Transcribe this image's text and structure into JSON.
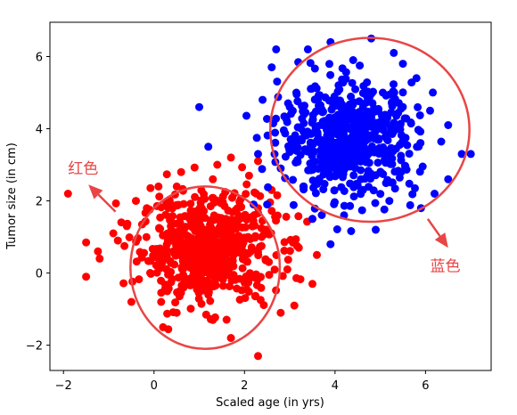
{
  "chart_data": {
    "type": "scatter",
    "xlabel": "Scaled age (in yrs)",
    "ylabel": "Tumor size (in cm)",
    "xlim": [
      -2.3,
      7.45
    ],
    "ylim": [
      -2.7,
      6.95
    ],
    "xticks": [
      -2,
      0,
      2,
      4,
      6
    ],
    "yticks": [
      -2,
      0,
      2,
      4,
      6
    ],
    "grid": false,
    "series": [
      {
        "color": "#ff0000",
        "center": [
          1.2,
          0.7
        ],
        "spread": [
          0.75,
          0.75
        ],
        "count": 600,
        "points": [
          [
            -1.9,
            2.2
          ],
          [
            -1.5,
            0.85
          ],
          [
            -1.5,
            -0.1
          ],
          [
            -1.2,
            0.4
          ],
          [
            -0.9,
            1.1
          ],
          [
            -0.6,
            1.3
          ],
          [
            -0.4,
            2.0
          ],
          [
            0.1,
            2.4
          ],
          [
            0.6,
            2.8
          ],
          [
            1.3,
            2.6
          ],
          [
            1.4,
            3.0
          ],
          [
            1.7,
            3.2
          ],
          [
            2.1,
            2.7
          ],
          [
            2.3,
            3.1
          ],
          [
            2.3,
            1.8
          ],
          [
            3.5,
            1.5
          ],
          [
            3.6,
            0.5
          ],
          [
            3.5,
            -0.3
          ],
          [
            3.1,
            -0.9
          ],
          [
            2.3,
            -2.3
          ],
          [
            1.7,
            -1.8
          ],
          [
            1.3,
            -1.3
          ],
          [
            0.5,
            -1.1
          ],
          [
            -0.5,
            -0.8
          ],
          [
            1.2,
            -0.6
          ],
          [
            3.2,
            0.7
          ],
          [
            2.6,
            2.3
          ],
          [
            -0.8,
            0.9
          ],
          [
            0.2,
            -1.5
          ],
          [
            2.8,
            -1.1
          ]
        ]
      },
      {
        "color": "#0000ff",
        "center": [
          4.3,
          3.7
        ],
        "spread": [
          0.75,
          0.75
        ],
        "count": 600,
        "points": [
          [
            1.0,
            4.6
          ],
          [
            1.2,
            3.5
          ],
          [
            2.3,
            3.3
          ],
          [
            2.4,
            4.8
          ],
          [
            2.6,
            5.7
          ],
          [
            2.7,
            6.2
          ],
          [
            3.4,
            6.2
          ],
          [
            3.9,
            6.4
          ],
          [
            4.8,
            6.5
          ],
          [
            5.3,
            6.1
          ],
          [
            5.8,
            5.4
          ],
          [
            6.1,
            4.5
          ],
          [
            6.8,
            3.3
          ],
          [
            7.0,
            3.3
          ],
          [
            6.5,
            2.6
          ],
          [
            6.2,
            2.2
          ],
          [
            5.2,
            2.0
          ],
          [
            4.9,
            1.2
          ],
          [
            4.2,
            1.6
          ],
          [
            3.9,
            0.8
          ],
          [
            3.5,
            1.5
          ],
          [
            2.5,
            1.9
          ],
          [
            2.2,
            1.9
          ],
          [
            3.3,
            2.4
          ],
          [
            2.8,
            2.9
          ],
          [
            5.9,
            1.8
          ],
          [
            3.0,
            4.6
          ],
          [
            5.5,
            5.8
          ],
          [
            4.4,
            5.9
          ],
          [
            6.5,
            4.1
          ]
        ]
      }
    ],
    "annotations": [
      {
        "label": "红色",
        "color": "#e84646",
        "text_pos": [
          -1.9,
          2.75
        ],
        "arrow_from": [
          -0.85,
          1.7
        ],
        "arrow_to": [
          -1.45,
          2.45
        ]
      },
      {
        "label": "蓝色",
        "color": "#e84646",
        "text_pos": [
          6.1,
          0.05
        ],
        "arrow_from": [
          6.05,
          1.5
        ],
        "arrow_to": [
          6.5,
          0.7
        ]
      }
    ],
    "ellipses": [
      {
        "color": "#e84646",
        "cx": 1.13,
        "cy": 0.15,
        "rx": 1.65,
        "ry": 2.25
      },
      {
        "color": "#e84646",
        "cx": 4.77,
        "cy": 3.97,
        "rx": 2.2,
        "ry": 2.55
      }
    ]
  }
}
